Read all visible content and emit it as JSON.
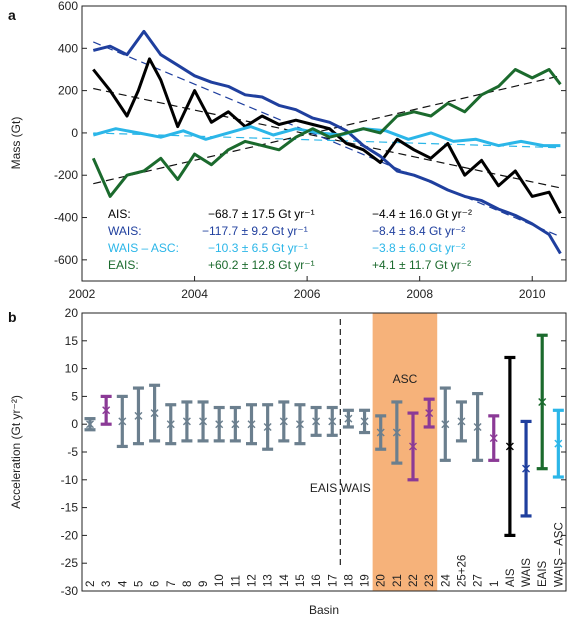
{
  "panel_a": {
    "label": "a",
    "ylabel": "Mass (Gt)",
    "legend": [
      {
        "name": "AIS:",
        "trend": "−68.7 ± 17.5 Gt yr⁻¹",
        "accel": "−4.4 ± 16.0 Gt yr⁻²",
        "color": "#000000"
      },
      {
        "name": "WAIS:",
        "trend": "−117.7 ± 9.2 Gt yr⁻¹",
        "accel": "−8.4 ± 8.4 Gt yr⁻²",
        "color": "#1f3f9e"
      },
      {
        "name": "WAIS – ASC:",
        "trend": "−10.3 ± 6.5 Gt yr⁻¹",
        "accel": "−3.8 ± 6.0 Gt yr⁻²",
        "color": "#2bb6e8"
      },
      {
        "name": "EAIS:",
        "trend": "+60.2 ± 12.8 Gt yr⁻¹",
        "accel": "+4.1 ± 11.7 Gt yr⁻²",
        "color": "#1b6a2d"
      }
    ]
  },
  "panel_b": {
    "label": "b",
    "ylabel": "Acceleration (Gt yr⁻²)",
    "xlabel": "Basin",
    "divider_label": "EAIS  WAIS",
    "highlight_label": "ASC",
    "highlight_color": "#f6b27a"
  },
  "chart_data": [
    {
      "type": "line",
      "xlim": [
        2002,
        2010.6
      ],
      "ylim": [
        -700,
        600
      ],
      "xticks": [
        2002,
        2004,
        2006,
        2008,
        2010
      ],
      "yticks": [
        -600,
        -400,
        -200,
        0,
        200,
        400,
        600
      ],
      "series": [
        {
          "name": "AIS",
          "color": "#000000",
          "x": [
            2002.2,
            2002.5,
            2002.8,
            2003.0,
            2003.2,
            2003.4,
            2003.7,
            2004.0,
            2004.3,
            2004.6,
            2004.9,
            2005.2,
            2005.5,
            2005.8,
            2006.1,
            2006.4,
            2006.7,
            2007.0,
            2007.3,
            2007.6,
            2007.9,
            2008.2,
            2008.5,
            2008.8,
            2009.1,
            2009.4,
            2009.7,
            2010.0,
            2010.3,
            2010.5
          ],
          "y": [
            300,
            200,
            80,
            200,
            350,
            250,
            30,
            200,
            50,
            100,
            30,
            80,
            40,
            60,
            40,
            20,
            -50,
            -80,
            -140,
            -30,
            -80,
            -120,
            -50,
            -200,
            -130,
            -250,
            -180,
            -300,
            -280,
            -380
          ]
        },
        {
          "name": "WAIS",
          "color": "#1f3f9e",
          "x": [
            2002.2,
            2002.5,
            2002.8,
            2003.1,
            2003.4,
            2003.7,
            2004.0,
            2004.3,
            2004.6,
            2004.9,
            2005.2,
            2005.5,
            2005.8,
            2006.1,
            2006.4,
            2006.7,
            2007.0,
            2007.3,
            2007.6,
            2007.9,
            2008.2,
            2008.5,
            2008.8,
            2009.1,
            2009.4,
            2009.7,
            2010.0,
            2010.3,
            2010.5
          ],
          "y": [
            390,
            410,
            370,
            480,
            370,
            320,
            270,
            240,
            220,
            180,
            170,
            130,
            110,
            70,
            50,
            10,
            -60,
            -110,
            -180,
            -200,
            -230,
            -270,
            -300,
            -320,
            -360,
            -390,
            -430,
            -480,
            -570
          ]
        },
        {
          "name": "WAIS – ASC",
          "color": "#2bb6e8",
          "x": [
            2002.2,
            2002.6,
            2003.0,
            2003.4,
            2003.8,
            2004.2,
            2004.6,
            2005.0,
            2005.4,
            2005.8,
            2006.2,
            2006.6,
            2007.0,
            2007.4,
            2007.8,
            2008.2,
            2008.6,
            2009.0,
            2009.4,
            2009.8,
            2010.2,
            2010.5
          ],
          "y": [
            -10,
            20,
            0,
            -20,
            10,
            -30,
            0,
            30,
            -10,
            20,
            0,
            -10,
            20,
            10,
            -30,
            0,
            -40,
            -30,
            -60,
            -40,
            -60,
            -60
          ]
        },
        {
          "name": "EAIS",
          "color": "#1b6a2d",
          "x": [
            2002.2,
            2002.5,
            2002.8,
            2003.1,
            2003.4,
            2003.7,
            2004.0,
            2004.3,
            2004.6,
            2004.9,
            2005.2,
            2005.5,
            2005.8,
            2006.1,
            2006.4,
            2006.7,
            2007.0,
            2007.3,
            2007.6,
            2007.9,
            2008.2,
            2008.5,
            2008.8,
            2009.1,
            2009.4,
            2009.7,
            2010.0,
            2010.3,
            2010.5
          ],
          "y": [
            -120,
            -300,
            -200,
            -180,
            -120,
            -220,
            -100,
            -150,
            -80,
            -40,
            -60,
            -80,
            -20,
            20,
            -20,
            0,
            20,
            0,
            80,
            100,
            80,
            140,
            100,
            180,
            220,
            300,
            260,
            300,
            230
          ]
        }
      ],
      "trend_lines": [
        {
          "series": "AIS",
          "x": [
            2002.2,
            2010.5
          ],
          "y": [
            210,
            -260
          ]
        },
        {
          "series": "WAIS",
          "x": [
            2002.2,
            2010.5
          ],
          "y": [
            430,
            -490
          ]
        },
        {
          "series": "WAIS – ASC",
          "x": [
            2002.2,
            2010.5
          ],
          "y": [
            0,
            -70
          ]
        },
        {
          "series": "EAIS",
          "x": [
            2002.2,
            2010.5
          ],
          "y": [
            -240,
            270
          ]
        }
      ]
    },
    {
      "type": "errorbar",
      "ylim": [
        -30,
        20
      ],
      "yticks": [
        -30,
        -25,
        -20,
        -15,
        -10,
        -5,
        0,
        5,
        10,
        15,
        20
      ],
      "categories": [
        "2",
        "3",
        "4",
        "5",
        "6",
        "7",
        "8",
        "9",
        "10",
        "11",
        "12",
        "13",
        "14",
        "15",
        "16",
        "17",
        "18",
        "19",
        "20",
        "21",
        "22",
        "23",
        "24",
        "25+26",
        "27",
        "1",
        "AIS",
        "WAIS",
        "EAIS",
        "WAIS – ASC"
      ],
      "values": [
        0.0,
        2.5,
        0.5,
        1.5,
        2.0,
        0.0,
        0.5,
        0.5,
        0.0,
        0.0,
        0.0,
        -0.5,
        0.5,
        0.0,
        0.5,
        0.5,
        1.0,
        0.5,
        -1.5,
        -1.5,
        -4.0,
        2.0,
        0.0,
        0.5,
        -0.5,
        -2.5,
        -4.0,
        -8.0,
        4.0,
        -3.5
      ],
      "errors": [
        1.0,
        2.5,
        4.5,
        5.0,
        5.0,
        3.5,
        3.5,
        3.5,
        3.0,
        3.0,
        3.5,
        4.0,
        3.5,
        3.5,
        2.5,
        2.5,
        1.5,
        2.0,
        3.0,
        5.5,
        6.0,
        2.5,
        6.5,
        3.5,
        6.0,
        4.0,
        16.0,
        8.5,
        12.0,
        6.0
      ],
      "colors": [
        "#6b7f8e",
        "#8b3a96",
        "#6b7f8e",
        "#6b7f8e",
        "#6b7f8e",
        "#6b7f8e",
        "#6b7f8e",
        "#6b7f8e",
        "#6b7f8e",
        "#6b7f8e",
        "#6b7f8e",
        "#6b7f8e",
        "#6b7f8e",
        "#6b7f8e",
        "#6b7f8e",
        "#6b7f8e",
        "#6b7f8e",
        "#6b7f8e",
        "#6b7f8e",
        "#6b7f8e",
        "#8b3a96",
        "#8b3a96",
        "#6b7f8e",
        "#6b7f8e",
        "#6b7f8e",
        "#8b3a96",
        "#000000",
        "#1f3f9e",
        "#1b6a2d",
        "#2bb6e8"
      ],
      "divider_after": "17",
      "highlight": [
        "20",
        "23"
      ]
    }
  ]
}
